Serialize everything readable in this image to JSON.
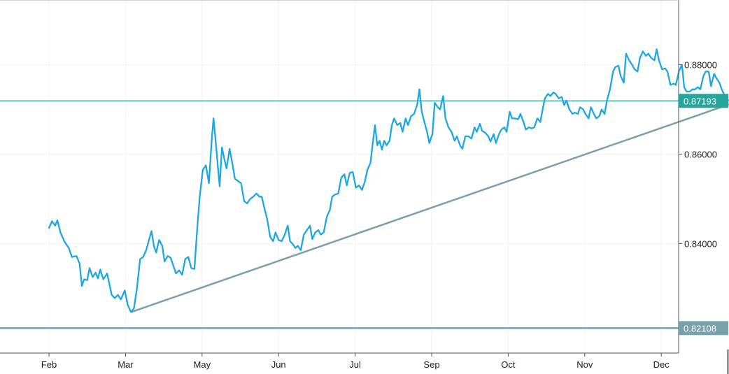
{
  "chart_data": {
    "type": "line",
    "title": "",
    "xlabel": "",
    "ylabel": "",
    "grid": true,
    "x_ticks": [
      "Feb",
      "Mar",
      "May",
      "Jun",
      "Jul",
      "Sep",
      "Oct",
      "Nov",
      "Dec"
    ],
    "y_ticks": [
      "0.88000",
      "0.86000",
      "0.84000"
    ],
    "ylim": [
      0.8155,
      0.8945
    ],
    "xlim": [
      0,
      9.6
    ],
    "series": [
      {
        "values": [
          [
            0.0,
            0.8435
          ],
          [
            0.04,
            0.845
          ],
          [
            0.08,
            0.844
          ],
          [
            0.11,
            0.8452
          ],
          [
            0.15,
            0.8425
          ],
          [
            0.2,
            0.8405
          ],
          [
            0.26,
            0.839
          ],
          [
            0.3,
            0.837
          ],
          [
            0.36,
            0.8372
          ],
          [
            0.4,
            0.8355
          ],
          [
            0.43,
            0.8305
          ],
          [
            0.46,
            0.832
          ],
          [
            0.5,
            0.8318
          ],
          [
            0.53,
            0.8345
          ],
          [
            0.57,
            0.8325
          ],
          [
            0.61,
            0.8335
          ],
          [
            0.64,
            0.8322
          ],
          [
            0.67,
            0.8342
          ],
          [
            0.71,
            0.832
          ],
          [
            0.76,
            0.8333
          ],
          [
            0.82,
            0.8285
          ],
          [
            0.86,
            0.8278
          ],
          [
            0.9,
            0.8285
          ],
          [
            0.94,
            0.8275
          ],
          [
            0.99,
            0.8295
          ],
          [
            1.03,
            0.8262
          ],
          [
            1.07,
            0.8247
          ],
          [
            1.11,
            0.8255
          ],
          [
            1.15,
            0.83
          ],
          [
            1.19,
            0.8365
          ],
          [
            1.23,
            0.837
          ],
          [
            1.27,
            0.8385
          ],
          [
            1.31,
            0.841
          ],
          [
            1.34,
            0.8428
          ],
          [
            1.37,
            0.8395
          ],
          [
            1.4,
            0.838
          ],
          [
            1.44,
            0.8408
          ],
          [
            1.48,
            0.8395
          ],
          [
            1.51,
            0.836
          ],
          [
            1.55,
            0.8372
          ],
          [
            1.59,
            0.8368
          ],
          [
            1.63,
            0.8348
          ],
          [
            1.66,
            0.8333
          ],
          [
            1.7,
            0.834
          ],
          [
            1.74,
            0.833
          ],
          [
            1.78,
            0.8365
          ],
          [
            1.82,
            0.837
          ],
          [
            1.86,
            0.8345
          ],
          [
            1.9,
            0.8343
          ],
          [
            1.94,
            0.844
          ],
          [
            1.97,
            0.8505
          ],
          [
            2.01,
            0.8565
          ],
          [
            2.05,
            0.8575
          ],
          [
            2.09,
            0.8535
          ],
          [
            2.13,
            0.864
          ],
          [
            2.15,
            0.868
          ],
          [
            2.18,
            0.8625
          ],
          [
            2.21,
            0.8565
          ],
          [
            2.23,
            0.8528
          ],
          [
            2.26,
            0.8615
          ],
          [
            2.29,
            0.859
          ],
          [
            2.32,
            0.8568
          ],
          [
            2.36,
            0.8612
          ],
          [
            2.4,
            0.8575
          ],
          [
            2.43,
            0.8545
          ],
          [
            2.47,
            0.854
          ],
          [
            2.51,
            0.8535
          ],
          [
            2.55,
            0.8495
          ],
          [
            2.59,
            0.849
          ],
          [
            2.63,
            0.85
          ],
          [
            2.67,
            0.8505
          ],
          [
            2.71,
            0.8512
          ],
          [
            2.75,
            0.8505
          ],
          [
            2.78,
            0.8505
          ],
          [
            2.82,
            0.8475
          ],
          [
            2.85,
            0.8455
          ],
          [
            2.89,
            0.8415
          ],
          [
            2.93,
            0.8405
          ],
          [
            2.96,
            0.8425
          ],
          [
            3.0,
            0.8408
          ],
          [
            3.04,
            0.8405
          ],
          [
            3.08,
            0.842
          ],
          [
            3.12,
            0.844
          ],
          [
            3.15,
            0.8405
          ],
          [
            3.18,
            0.84
          ],
          [
            3.22,
            0.839
          ],
          [
            3.25,
            0.8395
          ],
          [
            3.29,
            0.8385
          ],
          [
            3.33,
            0.842
          ],
          [
            3.37,
            0.843
          ],
          [
            3.41,
            0.844
          ],
          [
            3.44,
            0.841
          ],
          [
            3.48,
            0.8425
          ],
          [
            3.52,
            0.843
          ],
          [
            3.55,
            0.842
          ],
          [
            3.59,
            0.8425
          ],
          [
            3.63,
            0.846
          ],
          [
            3.67,
            0.8475
          ],
          [
            3.7,
            0.8505
          ],
          [
            3.74,
            0.851
          ],
          [
            3.78,
            0.8512
          ],
          [
            3.82,
            0.8548
          ],
          [
            3.86,
            0.8555
          ],
          [
            3.89,
            0.853
          ],
          [
            3.93,
            0.8558
          ],
          [
            3.97,
            0.856
          ],
          [
            4.01,
            0.8525
          ],
          [
            4.05,
            0.853
          ],
          [
            4.09,
            0.852
          ],
          [
            4.13,
            0.854
          ],
          [
            4.16,
            0.8565
          ],
          [
            4.2,
            0.858
          ],
          [
            4.23,
            0.8625
          ],
          [
            4.26,
            0.8665
          ],
          [
            4.29,
            0.862
          ],
          [
            4.32,
            0.863
          ],
          [
            4.35,
            0.861
          ],
          [
            4.38,
            0.863
          ],
          [
            4.41,
            0.862
          ],
          [
            4.45,
            0.863
          ],
          [
            4.48,
            0.8665
          ],
          [
            4.51,
            0.868
          ],
          [
            4.55,
            0.8665
          ],
          [
            4.59,
            0.867
          ],
          [
            4.62,
            0.865
          ],
          [
            4.66,
            0.868
          ],
          [
            4.69,
            0.8665
          ],
          [
            4.73,
            0.8685
          ],
          [
            4.77,
            0.869
          ],
          [
            4.81,
            0.871
          ],
          [
            4.84,
            0.8745
          ],
          [
            4.87,
            0.8695
          ],
          [
            4.9,
            0.8675
          ],
          [
            4.94,
            0.865
          ],
          [
            4.97,
            0.8625
          ],
          [
            5.01,
            0.8645
          ],
          [
            5.04,
            0.8715
          ],
          [
            5.08,
            0.8705
          ],
          [
            5.11,
            0.87
          ],
          [
            5.15,
            0.873
          ],
          [
            5.18,
            0.868
          ],
          [
            5.22,
            0.866
          ],
          [
            5.26,
            0.865
          ],
          [
            5.3,
            0.863
          ],
          [
            5.33,
            0.864
          ],
          [
            5.37,
            0.862
          ],
          [
            5.4,
            0.8612
          ],
          [
            5.44,
            0.864
          ],
          [
            5.48,
            0.864
          ],
          [
            5.52,
            0.8635
          ],
          [
            5.56,
            0.866
          ],
          [
            5.59,
            0.865
          ],
          [
            5.63,
            0.8668
          ],
          [
            5.66,
            0.8652
          ],
          [
            5.7,
            0.8648
          ],
          [
            5.74,
            0.864
          ],
          [
            5.77,
            0.8628
          ],
          [
            5.81,
            0.8645
          ],
          [
            5.84,
            0.8625
          ],
          [
            5.88,
            0.8645
          ],
          [
            5.91,
            0.8655
          ],
          [
            5.95,
            0.866
          ],
          [
            5.98,
            0.865
          ],
          [
            6.02,
            0.8695
          ],
          [
            6.05,
            0.868
          ],
          [
            6.09,
            0.868
          ],
          [
            6.13,
            0.8678
          ],
          [
            6.16,
            0.869
          ],
          [
            6.2,
            0.8672
          ],
          [
            6.23,
            0.8655
          ],
          [
            6.27,
            0.866
          ],
          [
            6.31,
            0.8658
          ],
          [
            6.34,
            0.866
          ],
          [
            6.38,
            0.868
          ],
          [
            6.42,
            0.8672
          ],
          [
            6.45,
            0.87
          ],
          [
            6.48,
            0.8725
          ],
          [
            6.52,
            0.8735
          ],
          [
            6.55,
            0.873
          ],
          [
            6.59,
            0.8738
          ],
          [
            6.62,
            0.8735
          ],
          [
            6.66,
            0.8725
          ],
          [
            6.7,
            0.8728
          ],
          [
            6.73,
            0.871
          ],
          [
            6.76,
            0.872
          ],
          [
            6.8,
            0.87
          ],
          [
            6.84,
            0.869
          ],
          [
            6.87,
            0.8693
          ],
          [
            6.91,
            0.869
          ],
          [
            6.94,
            0.8705
          ],
          [
            6.98,
            0.87
          ],
          [
            7.01,
            0.869
          ],
          [
            7.05,
            0.868
          ],
          [
            7.08,
            0.8705
          ],
          [
            7.12,
            0.869
          ],
          [
            7.15,
            0.868
          ],
          [
            7.19,
            0.8685
          ],
          [
            7.22,
            0.87
          ],
          [
            7.26,
            0.869
          ],
          [
            7.29,
            0.872
          ],
          [
            7.33,
            0.8745
          ],
          [
            7.37,
            0.8785
          ],
          [
            7.4,
            0.8795
          ],
          [
            7.44,
            0.8798
          ],
          [
            7.47,
            0.8775
          ],
          [
            7.51,
            0.876
          ],
          [
            7.54,
            0.8825
          ],
          [
            7.58,
            0.881
          ],
          [
            7.62,
            0.88
          ],
          [
            7.65,
            0.879
          ],
          [
            7.69,
            0.8785
          ],
          [
            7.72,
            0.8815
          ],
          [
            7.76,
            0.883
          ],
          [
            7.8,
            0.882
          ],
          [
            7.83,
            0.8825
          ],
          [
            7.87,
            0.8815
          ],
          [
            7.91,
            0.881
          ],
          [
            7.94,
            0.8835
          ],
          [
            7.97,
            0.881
          ],
          [
            8.01,
            0.879
          ],
          [
            8.05,
            0.8792
          ],
          [
            8.08,
            0.8785
          ],
          [
            8.12,
            0.8755
          ],
          [
            8.16,
            0.8758
          ],
          [
            8.19,
            0.8755
          ],
          [
            8.23,
            0.8785
          ],
          [
            8.27,
            0.88
          ],
          [
            8.3,
            0.875
          ],
          [
            8.33,
            0.874
          ],
          [
            8.37,
            0.874
          ],
          [
            8.41,
            0.8745
          ],
          [
            8.44,
            0.8745
          ],
          [
            8.48,
            0.875
          ],
          [
            8.51,
            0.8745
          ],
          [
            8.55,
            0.8775
          ],
          [
            8.58,
            0.8785
          ],
          [
            8.62,
            0.8785
          ],
          [
            8.65,
            0.8752
          ],
          [
            8.69,
            0.878
          ],
          [
            8.72,
            0.877
          ],
          [
            8.76,
            0.876
          ],
          [
            8.79,
            0.8745
          ],
          [
            8.83,
            0.873
          ],
          [
            8.86,
            0.8722
          ],
          [
            8.9,
            0.8719
          ],
          [
            8.93,
            0.8721
          ],
          [
            8.97,
            0.8719
          ]
        ]
      }
    ],
    "trendline": {
      "from": [
        1.08,
        0.8247
      ],
      "to": [
        9.08,
        0.8723
      ],
      "color": "#78a1aa"
    },
    "price_levels": [
      {
        "label": "0.87193",
        "value": 0.87193,
        "color": "#26a69a"
      },
      {
        "label": "0.82108",
        "value": 0.82108,
        "color": "#78a1aa"
      }
    ],
    "colors": {
      "series": "#1ea7e1",
      "grid": "#f1f3f6",
      "axis": "#555555",
      "background": "#ffffff"
    }
  }
}
